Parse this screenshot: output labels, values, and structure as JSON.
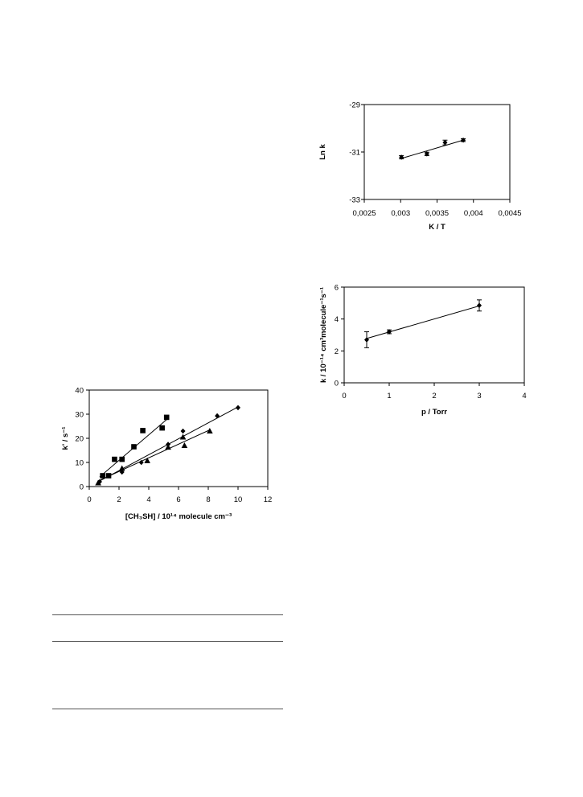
{
  "chart_data": [
    {
      "type": "scatter",
      "ylabel": "Ln k",
      "xlabel": "K / T",
      "xlim": [
        0.0025,
        0.0045
      ],
      "ylim": [
        -33,
        -29
      ],
      "x_ticks": [
        0.0025,
        0.003,
        0.0035,
        0.004,
        0.0045
      ],
      "x_tick_labels": [
        "0,0025",
        "0,003",
        "0,0035",
        "0,004",
        "0,0045"
      ],
      "y_ticks": [
        -29,
        -31,
        -33
      ],
      "y_tick_labels": [
        "-29",
        "-31",
        "-33"
      ],
      "grid": false,
      "series": [
        {
          "marker": "diamond",
          "points": [
            {
              "x": 0.00301,
              "y": -31.22,
              "err": 0.07
            },
            {
              "x": 0.00336,
              "y": -31.08,
              "err": 0.07
            },
            {
              "x": 0.00361,
              "y": -30.6,
              "err": 0.1
            },
            {
              "x": 0.00386,
              "y": -30.5,
              "err": 0.06
            }
          ],
          "fit": [
            [
              0.00301,
              -31.27
            ],
            [
              0.00386,
              -30.5
            ]
          ]
        }
      ]
    },
    {
      "type": "scatter",
      "ylabel": "k / 10⁻¹⁴ cm³molecule⁻¹s⁻¹",
      "xlabel": "p / Torr",
      "xlim": [
        0,
        4
      ],
      "ylim": [
        0,
        6
      ],
      "x_ticks": [
        0,
        1,
        2,
        3,
        4
      ],
      "x_tick_labels": [
        "0",
        "1",
        "2",
        "3",
        "4"
      ],
      "y_ticks": [
        0,
        2,
        4,
        6
      ],
      "y_tick_labels": [
        "0",
        "2",
        "4",
        "6"
      ],
      "grid": false,
      "series": [
        {
          "marker": "diamond",
          "points": [
            {
              "x": 0.5,
              "y": 2.7,
              "err": 0.5
            },
            {
              "x": 1.0,
              "y": 3.2,
              "err": 0.12
            },
            {
              "x": 3.0,
              "y": 4.85,
              "err": 0.35
            }
          ],
          "fit": [
            [
              0.5,
              2.78
            ],
            [
              3.0,
              4.82
            ]
          ]
        }
      ]
    },
    {
      "type": "scatter",
      "ylabel": "k' / s⁻¹",
      "xlabel": "[CH₃SH] / 10¹⁴ molecule cm⁻³",
      "xlim": [
        0,
        12
      ],
      "ylim": [
        0,
        40
      ],
      "x_ticks": [
        0,
        2,
        4,
        6,
        8,
        10,
        12
      ],
      "x_tick_labels": [
        "0",
        "2",
        "4",
        "6",
        "8",
        "10",
        "12"
      ],
      "y_ticks": [
        0,
        10,
        20,
        30,
        40
      ],
      "y_tick_labels": [
        "0",
        "10",
        "20",
        "30",
        "40"
      ],
      "grid": false,
      "series": [
        {
          "marker": "square",
          "points": [
            {
              "x": 0.9,
              "y": 4.5
            },
            {
              "x": 1.3,
              "y": 4.5
            },
            {
              "x": 1.7,
              "y": 11.3
            },
            {
              "x": 2.2,
              "y": 11.3
            },
            {
              "x": 3.0,
              "y": 16.5
            },
            {
              "x": 3.6,
              "y": 23.2
            },
            {
              "x": 4.9,
              "y": 24.3
            },
            {
              "x": 5.2,
              "y": 28.7
            }
          ],
          "fit": [
            [
              0.7,
              4.0
            ],
            [
              5.3,
              28.3
            ]
          ]
        },
        {
          "marker": "diamond",
          "points": [
            {
              "x": 0.7,
              "y": 2.0
            },
            {
              "x": 2.2,
              "y": 6.0
            },
            {
              "x": 3.5,
              "y": 10.0
            },
            {
              "x": 5.3,
              "y": 17.5
            },
            {
              "x": 6.3,
              "y": 23.0
            },
            {
              "x": 8.6,
              "y": 29.3
            },
            {
              "x": 10.0,
              "y": 32.7
            }
          ],
          "fit": [
            [
              0.6,
              2.0
            ],
            [
              10.0,
              33.0
            ]
          ]
        },
        {
          "marker": "triangle",
          "points": [
            {
              "x": 0.6,
              "y": 1.5
            },
            {
              "x": 2.2,
              "y": 7.5
            },
            {
              "x": 3.9,
              "y": 10.7
            },
            {
              "x": 5.3,
              "y": 16.3
            },
            {
              "x": 6.3,
              "y": 20.5
            },
            {
              "x": 6.4,
              "y": 17.0
            },
            {
              "x": 8.1,
              "y": 23.0
            }
          ],
          "fit": [
            [
              0.6,
              2.3
            ],
            [
              8.1,
              23.5
            ]
          ]
        }
      ]
    }
  ]
}
